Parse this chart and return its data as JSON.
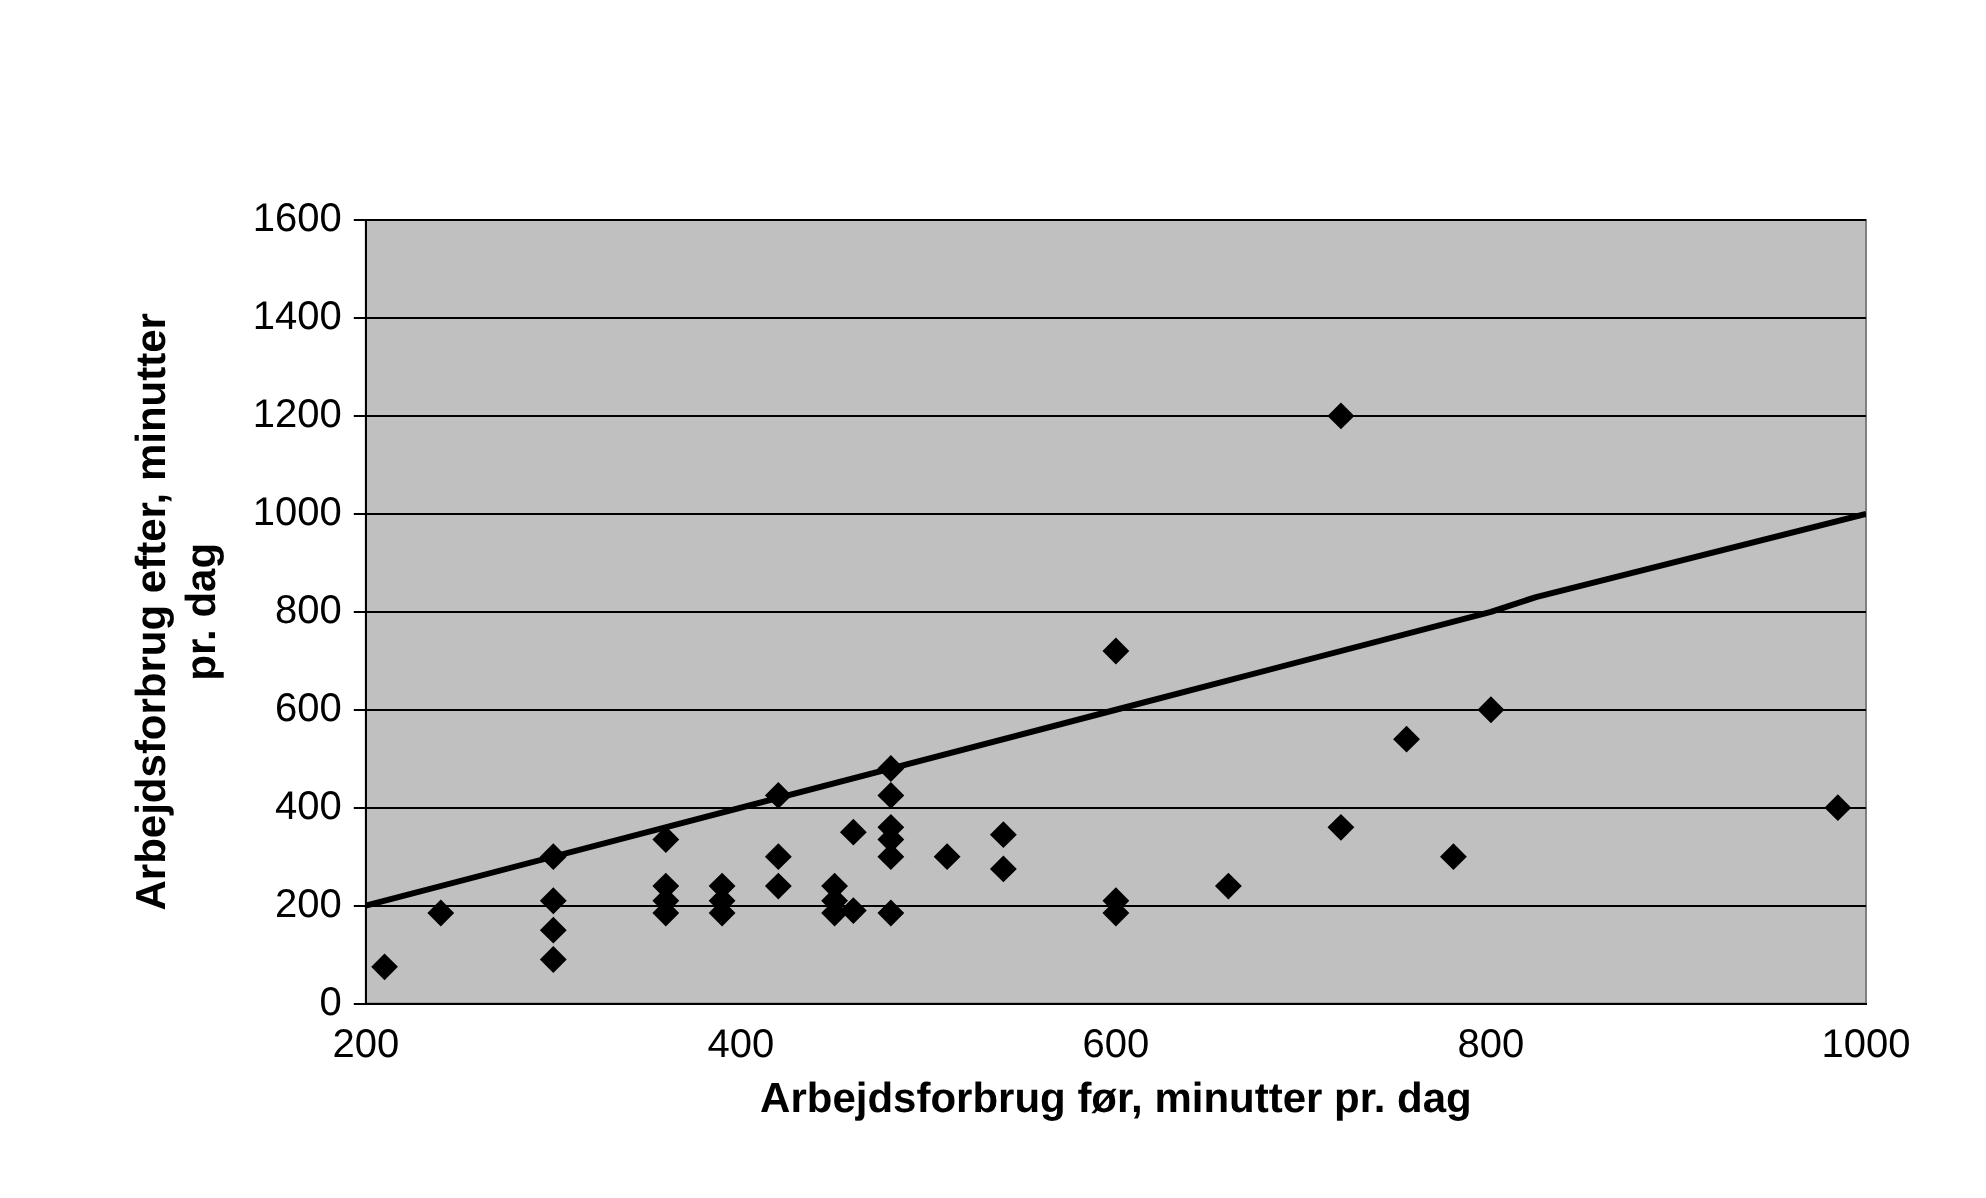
{
  "chart_data": {
    "type": "scatter",
    "xlabel": "Arbejdsforbrug før, minutter pr. dag",
    "ylabel": "Arbejdsforbrug efter, minutter pr. dag",
    "xlim": [
      200,
      1000
    ],
    "xticks": [
      200,
      400,
      600,
      800,
      1000
    ],
    "ylim": [
      0,
      1600
    ],
    "yticks": [
      0,
      200,
      400,
      600,
      800,
      1000,
      1200,
      1400,
      1600
    ],
    "grid": "y",
    "legend": false,
    "marker": "diamond",
    "series": [
      {
        "color": "#000000",
        "x": [
          210,
          240,
          300,
          300,
          300,
          300,
          360,
          360,
          360,
          360,
          390,
          390,
          390,
          420,
          420,
          420,
          450,
          450,
          450,
          460,
          460,
          480,
          480,
          480,
          480,
          480,
          480,
          510,
          540,
          540,
          600,
          600,
          600,
          660,
          720,
          720,
          755,
          780,
          800,
          985
        ],
        "values": [
          75,
          185,
          300,
          210,
          150,
          90,
          335,
          240,
          210,
          185,
          240,
          210,
          185,
          425,
          300,
          240,
          240,
          210,
          185,
          350,
          190,
          480,
          425,
          360,
          335,
          300,
          185,
          300,
          345,
          275,
          720,
          210,
          185,
          240,
          1200,
          360,
          540,
          300,
          600,
          400
        ]
      },
      {
        "type": "line",
        "color": "#000000",
        "marker": "none",
        "line_style": "solid",
        "x": [
          200,
          600,
          800,
          824,
          1000
        ],
        "values": [
          200,
          600,
          800,
          830,
          1000
        ]
      }
    ]
  }
}
